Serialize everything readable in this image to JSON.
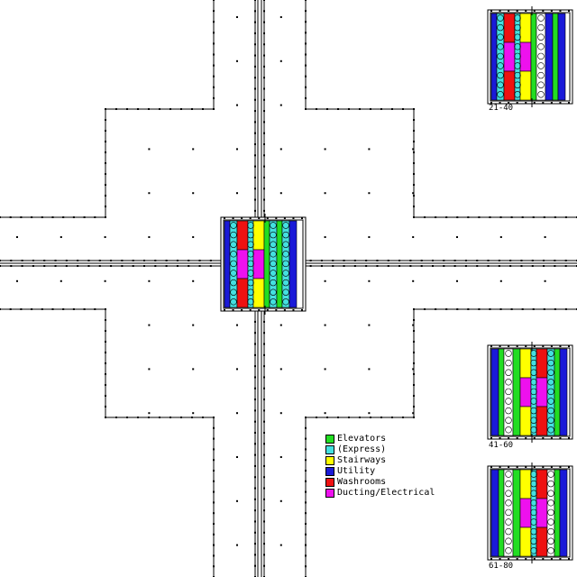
{
  "legend": [
    {
      "label": "Elevators",
      "color": "#22dd22"
    },
    {
      "label": "(Express)",
      "color": "#44e0e0"
    },
    {
      "label": "Stairways",
      "color": "#ffff00"
    },
    {
      "label": "Utility",
      "color": "#1a1ad8"
    },
    {
      "label": "Washrooms",
      "color": "#ee1111"
    },
    {
      "label": "Ducting/Electrical",
      "color": "#ee11ee"
    }
  ],
  "cores": [
    {
      "floors": "21-40"
    },
    {
      "floors": "41-60"
    },
    {
      "floors": "61-80"
    }
  ]
}
